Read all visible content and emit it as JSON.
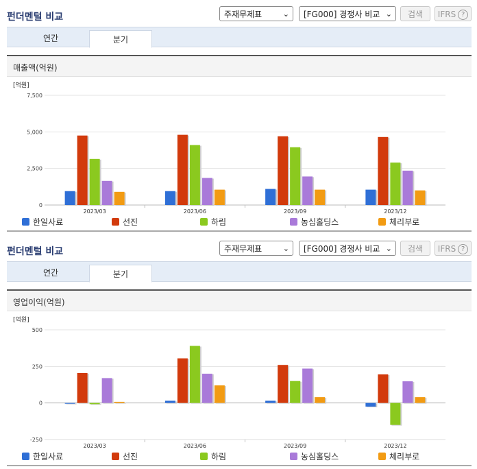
{
  "panels": [
    {
      "title": "펀더멘털 비교",
      "select1": "주재무제표",
      "select2": "[FG000] 경쟁사 비교",
      "search": "검색",
      "ifrs": "IFRS",
      "help": "?",
      "tabs": [
        "연간",
        "분기"
      ],
      "active_tab": 1,
      "section": "매출액(억원)"
    },
    {
      "title": "펀더멘털 비교",
      "select1": "주재무제표",
      "select2": "[FG000] 경쟁사 비교",
      "search": "검색",
      "ifrs": "IFRS",
      "help": "?",
      "tabs": [
        "연간",
        "분기"
      ],
      "active_tab": 1,
      "section": "영업이익(억원)"
    }
  ],
  "chart_data": [
    {
      "type": "bar",
      "unit_label": "[억원]",
      "categories": [
        "2023/03",
        "2023/06",
        "2023/09",
        "2023/12"
      ],
      "ylim": [
        0,
        7500
      ],
      "yticks": [
        0,
        2500,
        5000,
        7500
      ],
      "ytick_labels": [
        "0",
        "2,500",
        "5,000",
        "7,500"
      ],
      "series": [
        {
          "name": "한일사료",
          "color": "#2f6fd6",
          "values": [
            950,
            950,
            1100,
            1050
          ]
        },
        {
          "name": "선진",
          "color": "#d23a0c",
          "values": [
            4750,
            4800,
            4700,
            4650
          ]
        },
        {
          "name": "하림",
          "color": "#8bc91f",
          "values": [
            3150,
            4100,
            3950,
            2900
          ]
        },
        {
          "name": "농심홀딩스",
          "color": "#a97ad9",
          "values": [
            1650,
            1850,
            1950,
            2350
          ]
        },
        {
          "name": "체리부로",
          "color": "#f29b13",
          "values": [
            900,
            1050,
            1050,
            1000
          ]
        }
      ]
    },
    {
      "type": "bar",
      "unit_label": "[억원]",
      "categories": [
        "2023/03",
        "2023/06",
        "2023/09",
        "2023/12"
      ],
      "ylim": [
        -250,
        500
      ],
      "yticks": [
        -250,
        0,
        250,
        500
      ],
      "ytick_labels": [
        "-250",
        "0",
        "250",
        "500"
      ],
      "series": [
        {
          "name": "한일사료",
          "color": "#2f6fd6",
          "values": [
            -5,
            15,
            15,
            -25
          ]
        },
        {
          "name": "선진",
          "color": "#d23a0c",
          "values": [
            205,
            305,
            260,
            195
          ]
        },
        {
          "name": "하림",
          "color": "#8bc91f",
          "values": [
            -8,
            390,
            150,
            -150
          ]
        },
        {
          "name": "농심홀딩스",
          "color": "#a97ad9",
          "values": [
            170,
            200,
            235,
            148
          ]
        },
        {
          "name": "체리부로",
          "color": "#f29b13",
          "values": [
            8,
            120,
            40,
            40
          ]
        }
      ]
    }
  ]
}
